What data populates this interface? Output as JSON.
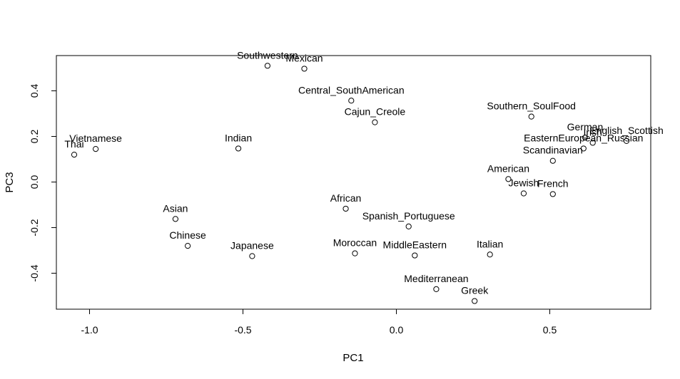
{
  "chart_data": {
    "type": "scatter",
    "title": "",
    "xlabel": "PC1",
    "ylabel": "PC3",
    "xlim": [
      -1.1,
      0.82
    ],
    "ylim": [
      -0.56,
      0.56
    ],
    "x_ticks": [
      {
        "value": -1.0,
        "label": "-1.0"
      },
      {
        "value": -0.5,
        "label": "-0.5"
      },
      {
        "value": 0.0,
        "label": "0.0"
      },
      {
        "value": 0.5,
        "label": "0.5"
      }
    ],
    "y_ticks": [
      {
        "value": -0.4,
        "label": "-0.4"
      },
      {
        "value": -0.2,
        "label": "-0.2"
      },
      {
        "value": 0.0,
        "label": "0.0"
      },
      {
        "value": 0.2,
        "label": "0.2"
      },
      {
        "value": 0.4,
        "label": "0.4"
      }
    ],
    "grid": false,
    "points": [
      {
        "label": "Thai",
        "x": -1.05,
        "y": 0.12
      },
      {
        "label": "Vietnamese",
        "x": -0.98,
        "y": 0.145
      },
      {
        "label": "Indian",
        "x": -0.515,
        "y": 0.147
      },
      {
        "label": "Southwestern",
        "x": -0.42,
        "y": 0.51
      },
      {
        "label": "Mexican",
        "x": -0.3,
        "y": 0.497
      },
      {
        "label": "Central_SouthAmerican",
        "x": -0.147,
        "y": 0.357
      },
      {
        "label": "Cajun_Creole",
        "x": -0.07,
        "y": 0.262
      },
      {
        "label": "Asian",
        "x": -0.72,
        "y": -0.162
      },
      {
        "label": "Chinese",
        "x": -0.68,
        "y": -0.28
      },
      {
        "label": "Japanese",
        "x": -0.47,
        "y": -0.325
      },
      {
        "label": "African",
        "x": -0.165,
        "y": -0.117
      },
      {
        "label": "Moroccan",
        "x": -0.135,
        "y": -0.313
      },
      {
        "label": "Spanish_Portuguese",
        "x": 0.04,
        "y": -0.195
      },
      {
        "label": "MiddleEastern",
        "x": 0.06,
        "y": -0.322
      },
      {
        "label": "Mediterranean",
        "x": 0.13,
        "y": -0.47
      },
      {
        "label": "Greek",
        "x": 0.255,
        "y": -0.522
      },
      {
        "label": "Italian",
        "x": 0.305,
        "y": -0.318
      },
      {
        "label": "Southern_SoulFood",
        "x": 0.44,
        "y": 0.287
      },
      {
        "label": "American",
        "x": 0.365,
        "y": 0.013
      },
      {
        "label": "Jewish",
        "x": 0.415,
        "y": -0.05
      },
      {
        "label": "French",
        "x": 0.51,
        "y": -0.053
      },
      {
        "label": "Scandinavian",
        "x": 0.51,
        "y": 0.093
      },
      {
        "label": "EasternEuropean_Russian",
        "x": 0.61,
        "y": 0.147
      },
      {
        "label": "German",
        "x": 0.615,
        "y": 0.195
      },
      {
        "label": "Irish",
        "x": 0.64,
        "y": 0.172
      },
      {
        "label": "English_Scottish",
        "x": 0.75,
        "y": 0.18
      }
    ]
  }
}
